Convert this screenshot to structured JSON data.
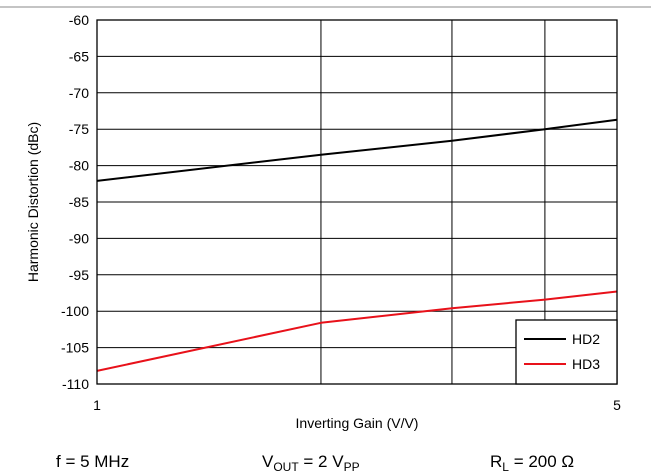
{
  "chart_data": {
    "type": "line",
    "xlabel": "Inverting Gain (V/V)",
    "ylabel": "Harmonic Distortion (dBc)",
    "x_scale": "log",
    "xlim": [
      1,
      5
    ],
    "ylim": [
      -110,
      -60
    ],
    "x_ticks": [
      "1",
      "5"
    ],
    "y_ticks": [
      "-60",
      "-65",
      "-70",
      "-75",
      "-80",
      "-85",
      "-90",
      "-95",
      "-100",
      "-105",
      "-110"
    ],
    "grid": true,
    "legend_position": "bottom-right",
    "series": [
      {
        "name": "HD2",
        "color": "#000000",
        "x": [
          1,
          2,
          3,
          4,
          5
        ],
        "y": [
          -82.1,
          -78.5,
          -76.6,
          -75.0,
          -73.7
        ]
      },
      {
        "name": "HD3",
        "color": "#e8111a",
        "x": [
          1,
          2,
          3,
          4,
          5
        ],
        "y": [
          -108.2,
          -101.6,
          -99.6,
          -98.4,
          -97.3
        ]
      }
    ]
  },
  "conditions": {
    "freq": {
      "main": "f = 5 MHz"
    },
    "vout": {
      "v": "V",
      "v_sub": "OUT",
      "mid": " = 2 V",
      "pp_sub": "PP"
    },
    "load": {
      "r": "R",
      "r_sub": "L",
      "rest": " = 200 Ω"
    }
  }
}
